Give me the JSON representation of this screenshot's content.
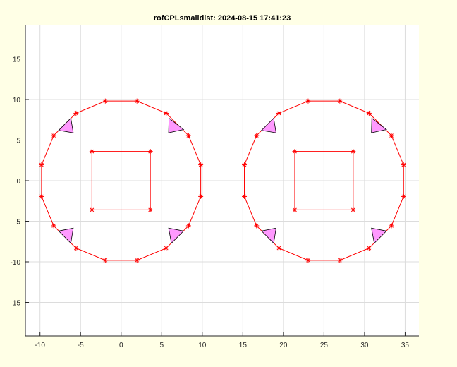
{
  "chart_data": {
    "type": "line",
    "title": "rofCPLsmalldist: 2024-08-15 17:41:23",
    "xlabel": "",
    "ylabel": "",
    "xlim": [
      -11.8,
      36.7
    ],
    "ylim": [
      -19.13,
      19.13
    ],
    "xticks": [
      -10,
      -5,
      0,
      5,
      10,
      15,
      20,
      25,
      30,
      35
    ],
    "yticks": [
      -15,
      -10,
      -5,
      0,
      5,
      10,
      15
    ],
    "grid": true,
    "axis_equal": true,
    "colors": {
      "background": "#ffffe6",
      "plot_bg": "#ffffff",
      "line": "#ff0000",
      "triangle_fill": "#ff99ff",
      "triangle_edge": "#000000",
      "grid": "#dcdcdc"
    },
    "marker": "asterisk",
    "polylines": [
      {
        "closed": true,
        "points": [
          [
            -1.95,
            9.81
          ],
          [
            1.95,
            9.81
          ],
          [
            5.56,
            8.31
          ],
          [
            8.31,
            5.56
          ],
          [
            9.81,
            1.95
          ],
          [
            9.81,
            -1.95
          ],
          [
            8.31,
            -5.56
          ],
          [
            5.56,
            -8.31
          ],
          [
            1.95,
            -9.81
          ],
          [
            -1.95,
            -9.81
          ],
          [
            -5.56,
            -8.31
          ],
          [
            -8.31,
            -5.56
          ],
          [
            -9.81,
            -1.95
          ],
          [
            -9.81,
            1.95
          ],
          [
            -8.31,
            5.56
          ],
          [
            -5.56,
            8.31
          ]
        ]
      },
      {
        "closed": true,
        "points": [
          [
            -3.6,
            3.6
          ],
          [
            3.6,
            3.6
          ],
          [
            3.6,
            -3.6
          ],
          [
            -3.6,
            -3.6
          ]
        ]
      },
      {
        "closed": true,
        "points": [
          [
            23.05,
            9.81
          ],
          [
            26.95,
            9.81
          ],
          [
            30.56,
            8.31
          ],
          [
            33.31,
            5.56
          ],
          [
            34.81,
            1.95
          ],
          [
            34.81,
            -1.95
          ],
          [
            33.31,
            -5.56
          ],
          [
            30.56,
            -8.31
          ],
          [
            26.95,
            -9.81
          ],
          [
            23.05,
            -9.81
          ],
          [
            19.44,
            -8.31
          ],
          [
            16.69,
            -5.56
          ],
          [
            15.19,
            -1.95
          ],
          [
            15.19,
            1.95
          ],
          [
            16.69,
            5.56
          ],
          [
            19.44,
            8.31
          ]
        ]
      },
      {
        "closed": true,
        "points": [
          [
            21.4,
            3.6
          ],
          [
            28.6,
            3.6
          ],
          [
            28.6,
            -3.6
          ],
          [
            21.4,
            -3.6
          ]
        ]
      }
    ],
    "triangles": [
      [
        [
          -7.7,
          6.2
        ],
        [
          -6.2,
          7.7
        ],
        [
          -5.9,
          5.9
        ]
      ],
      [
        [
          5.9,
          7.7
        ],
        [
          7.7,
          6.3
        ],
        [
          5.85,
          5.9
        ]
      ],
      [
        [
          -7.7,
          -6.2
        ],
        [
          -5.9,
          -5.85
        ],
        [
          -6.2,
          -7.7
        ]
      ],
      [
        [
          5.85,
          -5.85
        ],
        [
          7.7,
          -6.2
        ],
        [
          6.2,
          -7.7
        ]
      ],
      [
        [
          17.3,
          6.2
        ],
        [
          18.8,
          7.7
        ],
        [
          19.1,
          5.9
        ]
      ],
      [
        [
          30.9,
          7.7
        ],
        [
          32.7,
          6.3
        ],
        [
          30.85,
          5.9
        ]
      ],
      [
        [
          17.3,
          -6.2
        ],
        [
          19.1,
          -5.85
        ],
        [
          18.8,
          -7.7
        ]
      ],
      [
        [
          30.85,
          -5.85
        ],
        [
          32.7,
          -6.2
        ],
        [
          31.2,
          -7.7
        ]
      ]
    ]
  }
}
